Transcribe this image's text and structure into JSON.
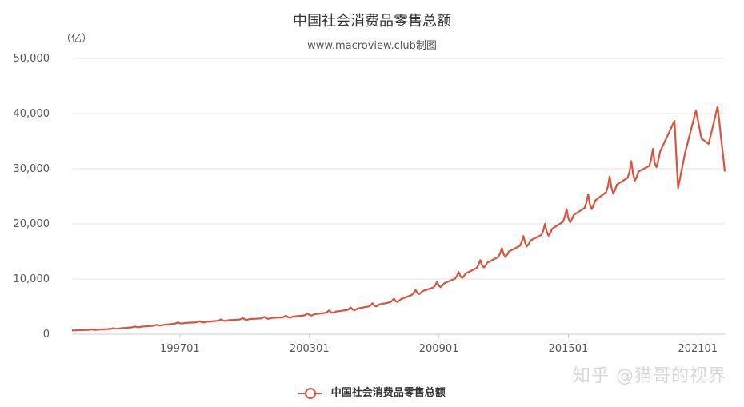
{
  "chart_data": {
    "type": "line",
    "title": "中国社会消费品零售总额",
    "subtitle": "www.macroview.club制图",
    "ylabel": "（亿）",
    "ylim": [
      0,
      50000
    ],
    "yticks": [
      "0",
      "10,000",
      "20,000",
      "30,000",
      "40,000",
      "50,000"
    ],
    "xtick_labels": [
      "199701",
      "200301",
      "200901",
      "201501",
      "202101"
    ],
    "grid": true,
    "legend_position": "bottom",
    "color": "#d9533f",
    "series": [
      {
        "name": "中国社会消费品零售总额",
        "x_start": "1992-01",
        "x_end": "2022-04",
        "anchors": [
          [
            "1992-01",
            700
          ],
          [
            "1993-01",
            800
          ],
          [
            "1994-01",
            1000
          ],
          [
            "1995-01",
            1300
          ],
          [
            "1996-01",
            1600
          ],
          [
            "1997-01",
            2000
          ],
          [
            "1998-01",
            2200
          ],
          [
            "1999-01",
            2500
          ],
          [
            "2000-01",
            2700
          ],
          [
            "2001-01",
            2900
          ],
          [
            "2002-01",
            3100
          ],
          [
            "2003-01",
            3500
          ],
          [
            "2004-01",
            4000
          ],
          [
            "2005-01",
            4500
          ],
          [
            "2006-01",
            5200
          ],
          [
            "2007-01",
            6000
          ],
          [
            "2008-01",
            7500
          ],
          [
            "2009-01",
            8800
          ],
          [
            "2010-01",
            10500
          ],
          [
            "2011-01",
            12500
          ],
          [
            "2012-01",
            14500
          ],
          [
            "2013-01",
            16500
          ],
          [
            "2014-01",
            18500
          ],
          [
            "2015-01",
            21000
          ],
          [
            "2016-01",
            23500
          ],
          [
            "2017-01",
            26500
          ],
          [
            "2018-01",
            29000
          ],
          [
            "2019-01",
            31000
          ],
          [
            "2019-12",
            38700
          ],
          [
            "2020-02",
            26500
          ],
          [
            "2020-06",
            33000
          ],
          [
            "2020-12",
            40600
          ],
          [
            "2021-03",
            35500
          ],
          [
            "2021-07",
            34500
          ],
          [
            "2021-12",
            41300
          ],
          [
            "2022-04",
            29500
          ]
        ],
        "seasonal_peak_month": 12,
        "seasonal_amplitude_pct": 9
      }
    ]
  },
  "legend": {
    "label": "中国社会消费品零售总额"
  },
  "watermark": "知乎 @猫哥的视界"
}
